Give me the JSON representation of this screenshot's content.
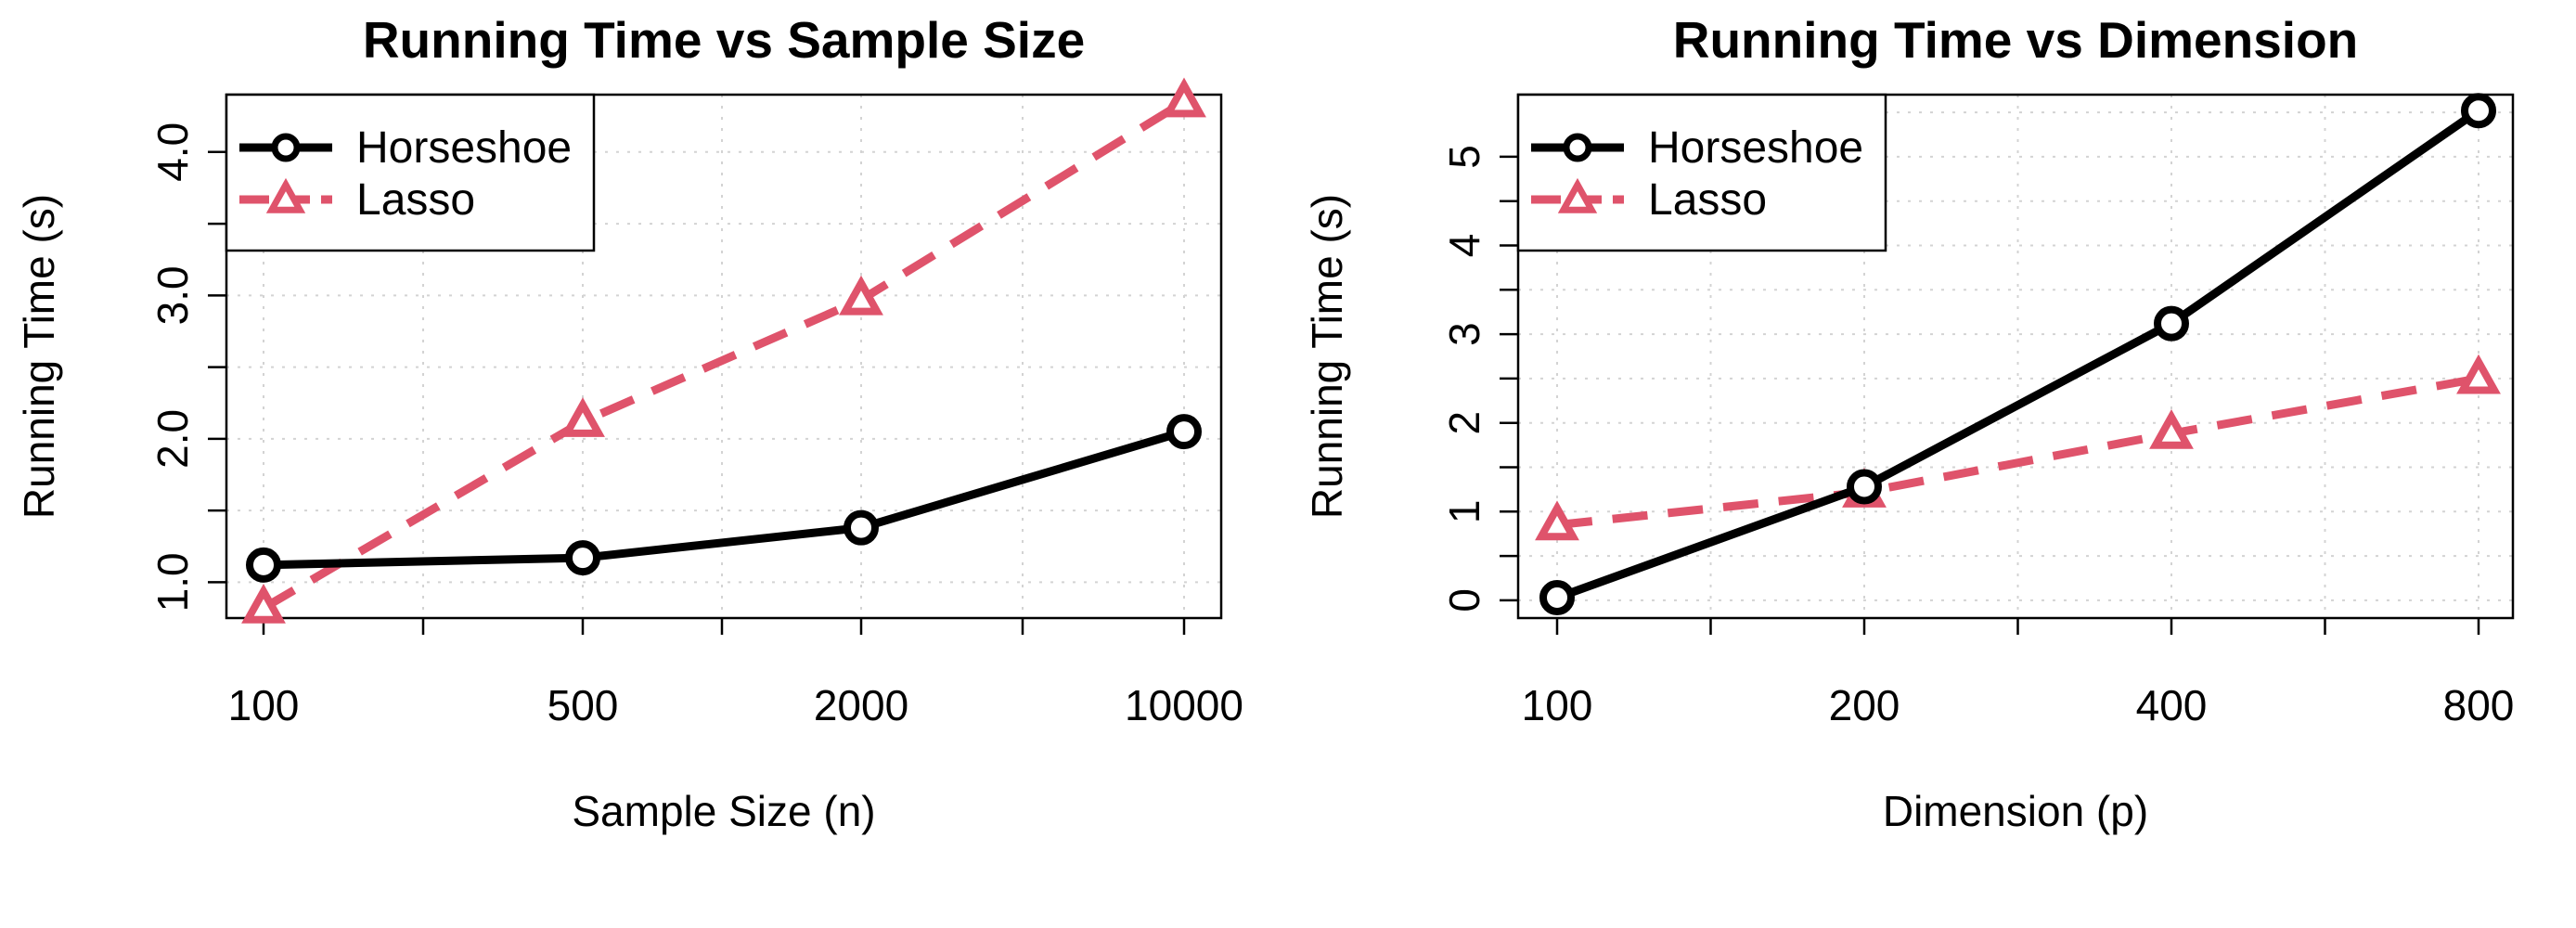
{
  "colors": {
    "horseshoe": "#000000",
    "lasso": "#DF536B",
    "grid": "#d3d3d3"
  },
  "chart_data": [
    {
      "type": "line",
      "title": "Running Time vs Sample Size",
      "xlabel": "Sample Size (n)",
      "ylabel": "Running Time (s)",
      "x_scale": "log",
      "x": [
        100,
        500,
        2000,
        10000
      ],
      "xticks": [
        "100",
        "500",
        "2000",
        "10000"
      ],
      "yticks": [
        "1.0",
        "2.0",
        "3.0",
        "4.0"
      ],
      "ylim": [
        0.75,
        4.4
      ],
      "grid": true,
      "legend_position": "top-left",
      "series": [
        {
          "name": "Horseshoe",
          "values": [
            1.12,
            1.17,
            1.38,
            2.05
          ],
          "style": "solid",
          "marker": "circle"
        },
        {
          "name": "Lasso",
          "values": [
            0.82,
            2.12,
            2.97,
            4.35
          ],
          "style": "dashed",
          "marker": "triangle"
        }
      ]
    },
    {
      "type": "line",
      "title": "Running Time vs Dimension",
      "xlabel": "Dimension (p)",
      "ylabel": "Running Time (s)",
      "x_scale": "log",
      "x": [
        100,
        200,
        400,
        800
      ],
      "xticks": [
        "100",
        "200",
        "400",
        "800"
      ],
      "yticks": [
        "0",
        "1",
        "2",
        "3",
        "4",
        "5"
      ],
      "ylim": [
        -0.2,
        5.7
      ],
      "grid": true,
      "legend_position": "top-left",
      "series": [
        {
          "name": "Horseshoe",
          "values": [
            0.03,
            1.28,
            3.12,
            5.52
          ],
          "style": "solid",
          "marker": "circle"
        },
        {
          "name": "Lasso",
          "values": [
            0.85,
            1.22,
            1.88,
            2.5
          ],
          "style": "dashed",
          "marker": "triangle"
        }
      ]
    }
  ]
}
